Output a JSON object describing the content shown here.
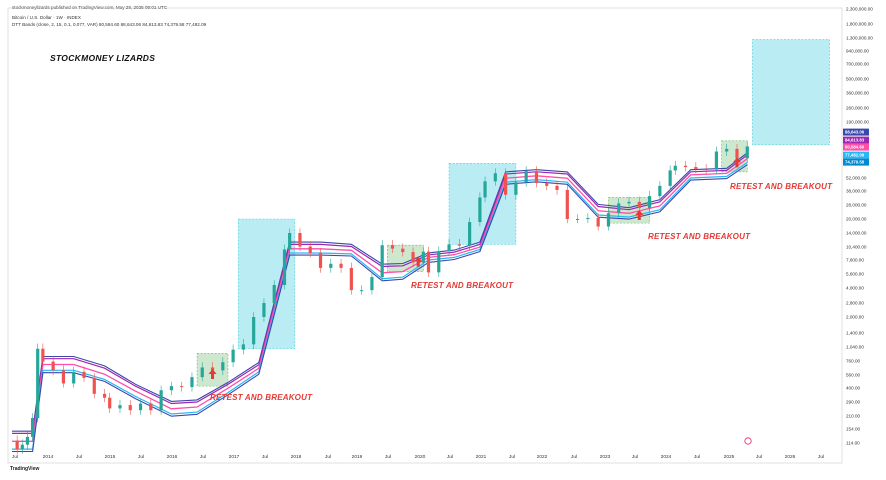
{
  "header": {
    "published_line": "stockmoneylizards published on TradingView.com, May 28, 2025 09:01 UTC",
    "symbol_line": "Bitcoin / U.S. Dollar · 1W · INDEX",
    "indicator_line": "DTT Bands (close, 2, 15, 0.1, 0.077, VAR)  80,584.60  88,643.06  84,613.83  74,379.58  77,482.09"
  },
  "watermark": "STOCKMONEY LIZARDS",
  "footer": {
    "logo": "TradingView"
  },
  "colors": {
    "up_candle": "#26a69a",
    "down_candle": "#ef5350",
    "band_blue": "#3949ab",
    "band_purple": "#9c27b0",
    "band_pink": "#ff4fa8",
    "band_cyan": "#29b6f6",
    "green_zone": "#a5d6a7",
    "cyan_zone": "#80deea",
    "annotation": "#e53935"
  },
  "chart_data": {
    "type": "candlestick",
    "title": "",
    "scale": "log",
    "x_tick_labels": [
      "Jul",
      "2014",
      "Jul",
      "2015",
      "Jul",
      "2016",
      "Jul",
      "2017",
      "Jul",
      "2018",
      "Jul",
      "2019",
      "Jul",
      "2020",
      "Jul",
      "2021",
      "Jul",
      "2022",
      "Jul",
      "2023",
      "Jul",
      "2024",
      "Jul",
      "2025",
      "Jul",
      "2026",
      "Jul"
    ],
    "y_tick_labels": [
      {
        "label": "2,300,000.00",
        "value": 2300000
      },
      {
        "label": "1,800,000.00",
        "value": 1800000
      },
      {
        "label": "1,300,000.00",
        "value": 1300000
      },
      {
        "label": "940,000.00",
        "value": 940000
      },
      {
        "label": "700,000.00",
        "value": 700000
      },
      {
        "label": "500,000.00",
        "value": 500000
      },
      {
        "label": "360,000.00",
        "value": 360000
      },
      {
        "label": "260,000.00",
        "value": 260000
      },
      {
        "label": "190,000.00",
        "value": 190000
      },
      {
        "label": "52,000.00",
        "value": 52000
      },
      {
        "label": "38,000.00",
        "value": 38000
      },
      {
        "label": "28,000.00",
        "value": 28000
      },
      {
        "label": "20,000.00",
        "value": 20000
      },
      {
        "label": "14,000.00",
        "value": 14000
      },
      {
        "label": "10,400.00",
        "value": 10400
      },
      {
        "label": "7,600.00",
        "value": 7600
      },
      {
        "label": "5,600.00",
        "value": 5600
      },
      {
        "label": "4,000.00",
        "value": 4000
      },
      {
        "label": "2,800.00",
        "value": 2800
      },
      {
        "label": "2,000.00",
        "value": 2000
      },
      {
        "label": "1,400.00",
        "value": 1400
      },
      {
        "label": "1,040.00",
        "value": 1040
      },
      {
        "label": "760.00",
        "value": 760
      },
      {
        "label": "560.00",
        "value": 560
      },
      {
        "label": "400.00",
        "value": 400
      },
      {
        "label": "290.00",
        "value": 290
      },
      {
        "label": "210.00",
        "value": 210
      },
      {
        "label": "154.00",
        "value": 154
      },
      {
        "label": "114.00",
        "value": 114
      }
    ],
    "price_tags": [
      {
        "label": "88,643.06",
        "color": "#3949ab"
      },
      {
        "label": "84,613.83",
        "color": "#9c27b0"
      },
      {
        "label": "80,584.60",
        "color": "#ff4fa8"
      },
      {
        "label": "77,482.09",
        "color": "#29b6f6"
      },
      {
        "label": "74,379.58",
        "color": "#0288d1"
      }
    ],
    "annotations": [
      "RETEST AND BREAKOUT",
      "RETEST AND BREAKOUT",
      "RETEST AND BREAKOUT",
      "RETEST AND BREAKOUT"
    ],
    "price_series": {
      "date": [
        "2013-06",
        "2013-07",
        "2013-08",
        "2013-09",
        "2013-10",
        "2013-11",
        "2013-12",
        "2014-02",
        "2014-04",
        "2014-06",
        "2014-08",
        "2014-10",
        "2014-12",
        "2015-01",
        "2015-03",
        "2015-05",
        "2015-07",
        "2015-09",
        "2015-11",
        "2016-01",
        "2016-03",
        "2016-05",
        "2016-07",
        "2016-09",
        "2016-11",
        "2017-01",
        "2017-03",
        "2017-05",
        "2017-07",
        "2017-09",
        "2017-11",
        "2017-12",
        "2018-02",
        "2018-04",
        "2018-06",
        "2018-08",
        "2018-10",
        "2018-12",
        "2019-02",
        "2019-04",
        "2019-06",
        "2019-08",
        "2019-10",
        "2019-12",
        "2020-02",
        "2020-03",
        "2020-05",
        "2020-07",
        "2020-09",
        "2020-11",
        "2021-01",
        "2021-02",
        "2021-04",
        "2021-06",
        "2021-08",
        "2021-10",
        "2021-12",
        "2022-02",
        "2022-04",
        "2022-06",
        "2022-08",
        "2022-10",
        "2022-12",
        "2023-02",
        "2023-04",
        "2023-06",
        "2023-08",
        "2023-10",
        "2023-12",
        "2024-02",
        "2024-03",
        "2024-05",
        "2024-07",
        "2024-09",
        "2024-11",
        "2025-01",
        "2025-03",
        "2025-05"
      ],
      "close": [
        120,
        100,
        110,
        130,
        200,
        1000,
        750,
        620,
        450,
        600,
        520,
        350,
        320,
        250,
        270,
        240,
        280,
        240,
        380,
        420,
        410,
        530,
        660,
        620,
        740,
        980,
        1100,
        2000,
        2800,
        4300,
        9800,
        14000,
        10500,
        9000,
        6400,
        7000,
        6400,
        3800,
        3800,
        5200,
        10800,
        10000,
        9200,
        7200,
        9300,
        5800,
        9400,
        11000,
        10700,
        18500,
        33000,
        48000,
        58000,
        35000,
        47000,
        61000,
        46000,
        43000,
        39000,
        20000,
        20000,
        20500,
        16500,
        23000,
        29000,
        30000,
        26000,
        34000,
        43000,
        62000,
        69000,
        67000,
        64000,
        63000,
        96000,
        102000,
        82000,
        108000
      ]
    },
    "dtt_bands": {
      "date": [
        "2013-06",
        "2013-10",
        "2013-12",
        "2014-06",
        "2014-12",
        "2015-06",
        "2016-01",
        "2016-06",
        "2016-12",
        "2017-06",
        "2017-12",
        "2018-06",
        "2018-12",
        "2019-06",
        "2019-10",
        "2020-03",
        "2020-08",
        "2021-01",
        "2021-06",
        "2021-12",
        "2022-06",
        "2022-12",
        "2023-06",
        "2023-12",
        "2024-06",
        "2025-01",
        "2025-05"
      ],
      "upper": [
        140,
        140,
        800,
        800,
        650,
        420,
        280,
        290,
        440,
        700,
        11000,
        11000,
        10500,
        6600,
        6700,
        8600,
        9200,
        11000,
        57000,
        60000,
        57000,
        27000,
        25000,
        30000,
        60000,
        62000,
        88643.06
      ],
      "lower": [
        100,
        100,
        620,
        620,
        500,
        330,
        220,
        230,
        360,
        600,
        9000,
        9000,
        8800,
        5000,
        5200,
        7600,
        8100,
        9800,
        47000,
        50000,
        47000,
        22000,
        21000,
        25000,
        52000,
        54000,
        74379.58
      ]
    },
    "zones": [
      {
        "kind": "green",
        "from": "2016-06",
        "to": "2016-12",
        "low": 420,
        "high": 900
      },
      {
        "kind": "cyan",
        "from": "2017-02",
        "to": "2018-01",
        "low": 1000,
        "high": 20000
      },
      {
        "kind": "green",
        "from": "2019-07",
        "to": "2020-02",
        "low": 5900,
        "high": 10800
      },
      {
        "kind": "cyan",
        "from": "2020-07",
        "to": "2021-08",
        "low": 11000,
        "high": 73000
      },
      {
        "kind": "green",
        "from": "2023-02",
        "to": "2023-10",
        "low": 18000,
        "high": 33000
      },
      {
        "kind": "green",
        "from": "2024-12",
        "to": "2025-05",
        "low": 60000,
        "high": 123000
      },
      {
        "kind": "cyan",
        "from": "2025-06",
        "to": "2026-09",
        "low": 112000,
        "high": 1250000
      }
    ]
  }
}
